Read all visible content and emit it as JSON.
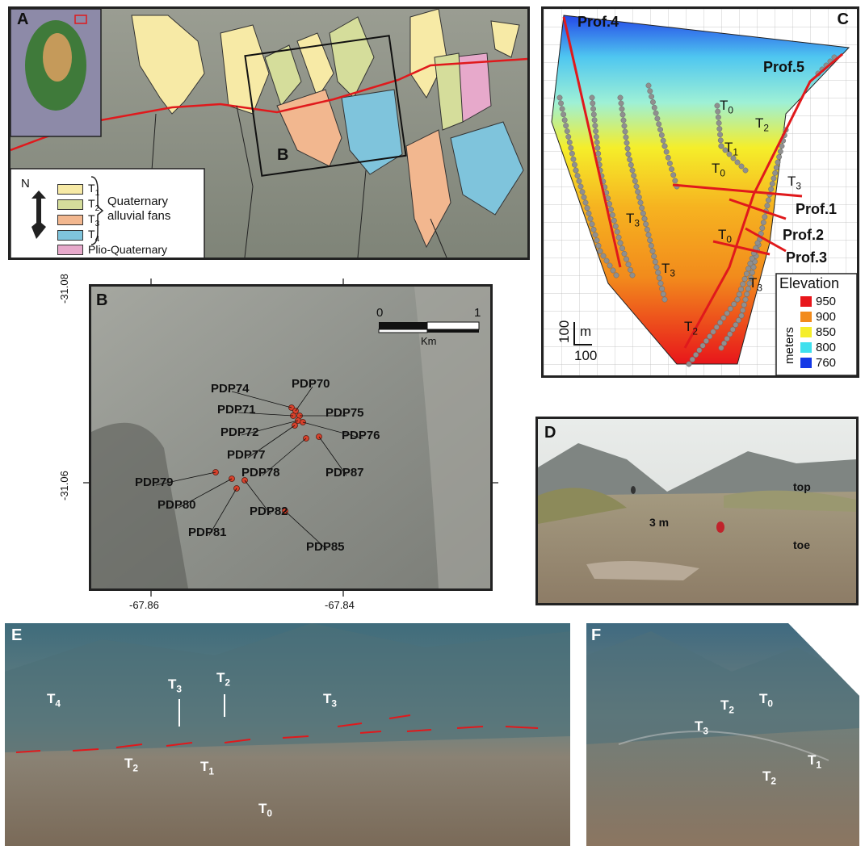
{
  "panels": {
    "a": {
      "letter": "A",
      "legend": [
        {
          "code": "T",
          "sub": "1",
          "color": "#f7eaa6"
        },
        {
          "code": "T",
          "sub": "2",
          "color": "#d5dd9b"
        },
        {
          "code": "T",
          "sub": "3",
          "color": "#f2b78f"
        },
        {
          "code": "T",
          "sub": "4",
          "color": "#7fc4dc"
        },
        {
          "code": "Plio-Quaternary",
          "sub": "",
          "color": "#e7a9cb"
        }
      ],
      "legend_group": "Quaternary alluvial fans",
      "group_line1": "Quaternary",
      "group_line2": "alluvial fans",
      "north": "N",
      "inset_label": "B"
    },
    "b": {
      "letter": "B",
      "lat_ticks": [
        "-31.08",
        "-31.06"
      ],
      "lon_ticks": [
        "-67.86",
        "-67.84"
      ],
      "scale": {
        "start": "0",
        "end": "1",
        "unit": "Km"
      },
      "samples": [
        "PDP74",
        "PDP70",
        "PDP71",
        "PDP75",
        "PDP72",
        "PDP76",
        "PDP77",
        "PDP78",
        "PDP87",
        "PDP79",
        "PDP80",
        "PDP82",
        "PDP81",
        "PDP85"
      ]
    },
    "c": {
      "letter": "C",
      "profiles": [
        "Prof.4",
        "Prof.5",
        "Prof.1",
        "Prof.2",
        "Prof.3"
      ],
      "terrace_labels": [
        {
          "t": "T",
          "s": "0"
        },
        {
          "t": "T",
          "s": "2"
        },
        {
          "t": "T",
          "s": "1"
        },
        {
          "t": "T",
          "s": "0"
        },
        {
          "t": "T",
          "s": "3"
        },
        {
          "t": "T",
          "s": "3"
        },
        {
          "t": "T",
          "s": "0"
        },
        {
          "t": "T",
          "s": "3"
        },
        {
          "t": "T",
          "s": "3"
        },
        {
          "t": "T",
          "s": "2"
        }
      ],
      "scale_v": "100",
      "scale_unit": "m",
      "scale_h": "100",
      "legend": {
        "title": "Elevation",
        "unit": "meters",
        "items": [
          {
            "value": "950",
            "color": "#e8161b"
          },
          {
            "value": "900",
            "color": "#f28b1c"
          },
          {
            "value": "850",
            "color": "#f5ee2a"
          },
          {
            "value": "800",
            "color": "#3fe0ee"
          },
          {
            "value": "760",
            "color": "#1438e6"
          }
        ]
      }
    },
    "d": {
      "letter": "D",
      "labels": {
        "top": "top",
        "height": "3 m",
        "toe": "toe"
      }
    },
    "e": {
      "letter": "E",
      "labels": [
        {
          "t": "T",
          "s": "4"
        },
        {
          "t": "T",
          "s": "3"
        },
        {
          "t": "T",
          "s": "2"
        },
        {
          "t": "T",
          "s": "3"
        },
        {
          "t": "T",
          "s": "2"
        },
        {
          "t": "T",
          "s": "1"
        },
        {
          "t": "T",
          "s": "0"
        }
      ]
    },
    "f": {
      "letter": "F",
      "labels": [
        {
          "t": "T",
          "s": "0"
        },
        {
          "t": "T",
          "s": "2"
        },
        {
          "t": "T",
          "s": "3"
        },
        {
          "t": "T",
          "s": "1"
        },
        {
          "t": "T",
          "s": "2"
        }
      ]
    }
  },
  "colors": {
    "fault": "#e0191c",
    "sample_dot": "#d8412b",
    "frame": "#222222"
  }
}
